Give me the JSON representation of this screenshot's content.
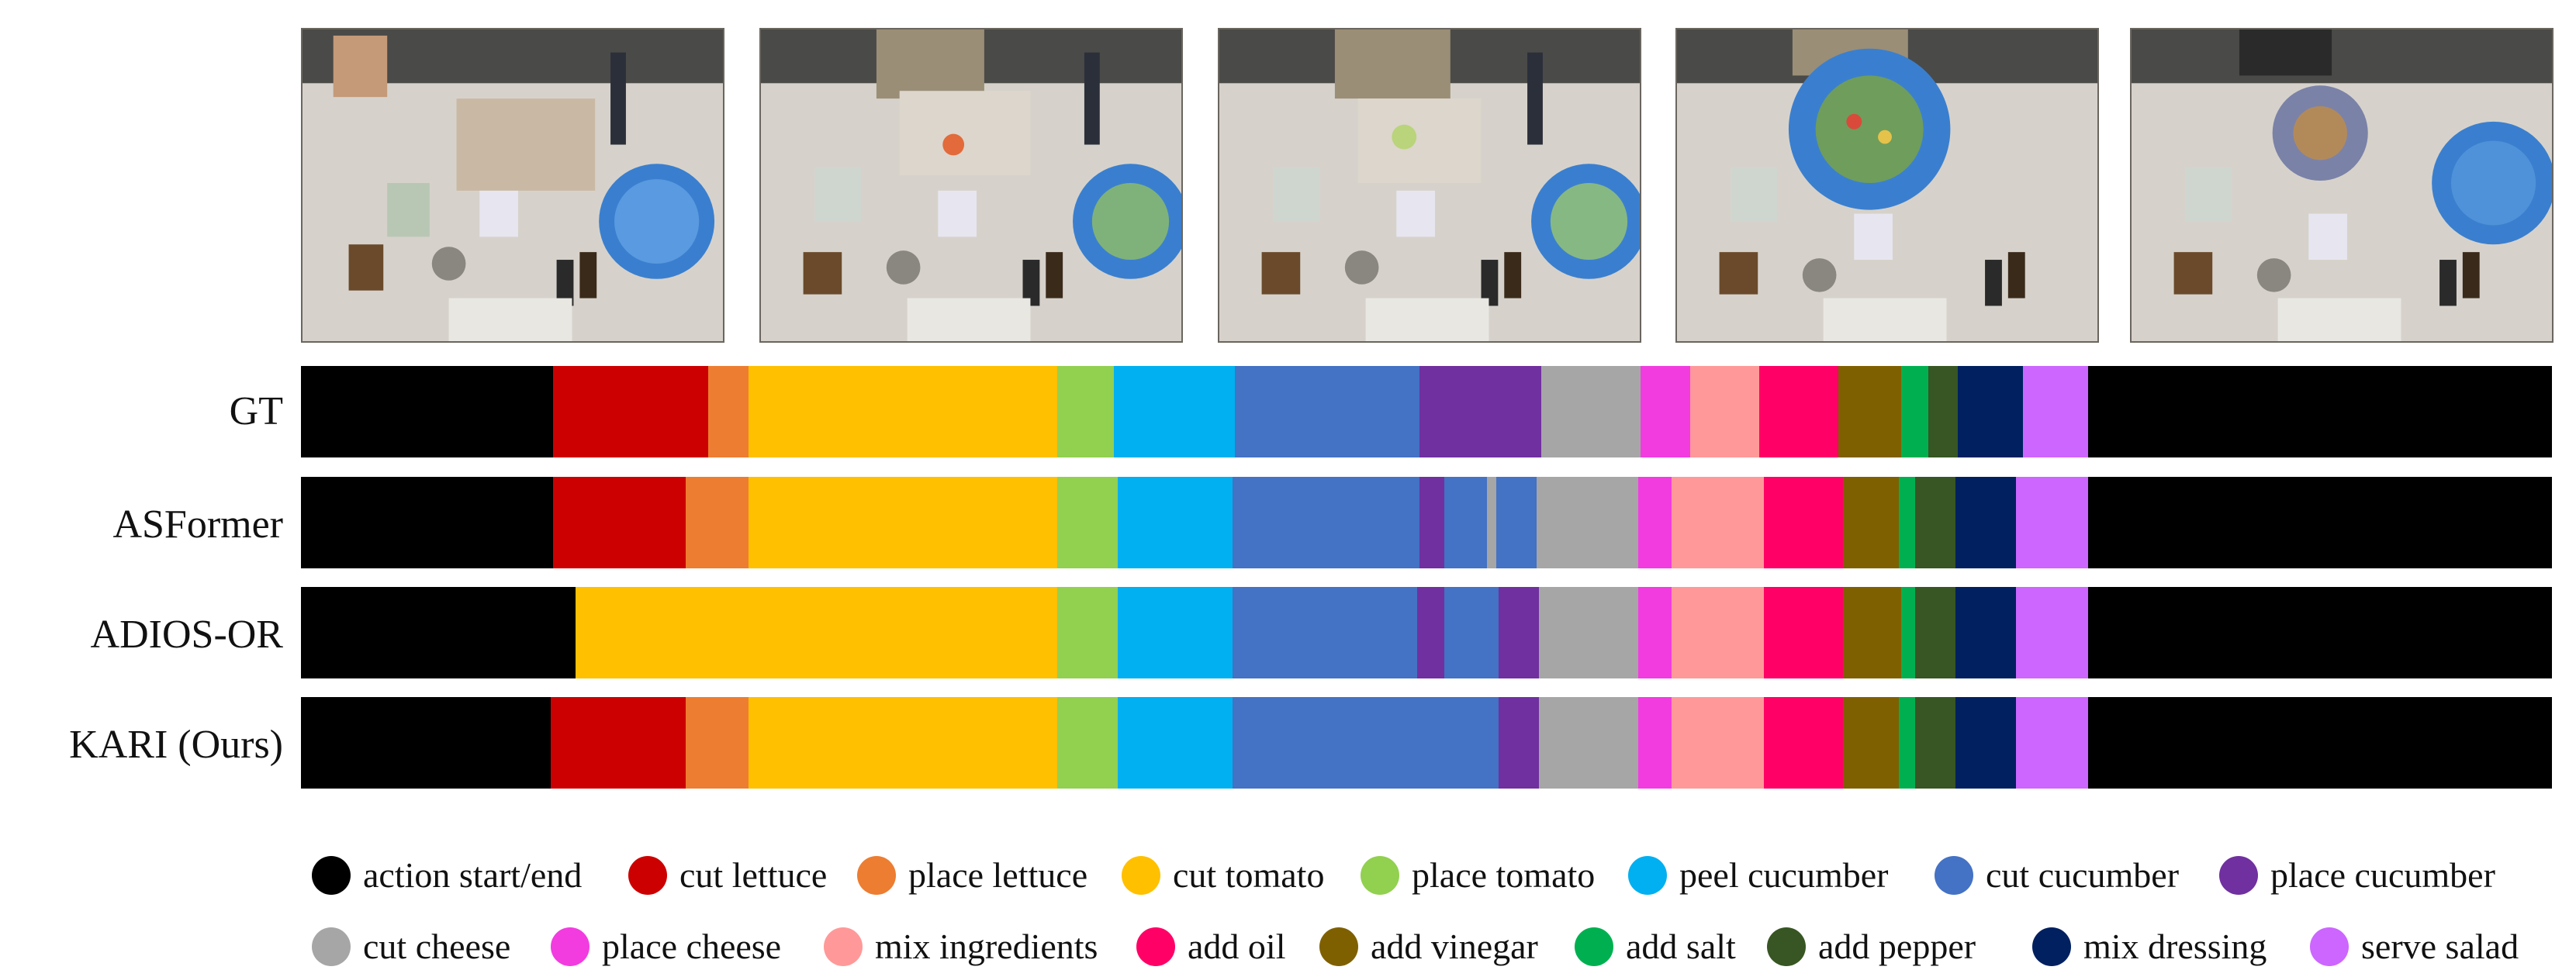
{
  "frames": [
    "frame-1",
    "frame-2",
    "frame-3",
    "frame-4",
    "frame-5"
  ],
  "rows": [
    {
      "label": "GT",
      "segments": [
        {
          "action": "action start/end",
          "start": 0.0,
          "end": 0.112
        },
        {
          "action": "cut lettuce",
          "start": 0.112,
          "end": 0.181
        },
        {
          "action": "place lettuce",
          "start": 0.181,
          "end": 0.199
        },
        {
          "action": "cut tomato",
          "start": 0.199,
          "end": 0.336
        },
        {
          "action": "place tomato",
          "start": 0.336,
          "end": 0.361
        },
        {
          "action": "peel cucumber",
          "start": 0.361,
          "end": 0.415
        },
        {
          "action": "cut cucumber",
          "start": 0.415,
          "end": 0.497
        },
        {
          "action": "place cucumber",
          "start": 0.497,
          "end": 0.551
        },
        {
          "action": "cut cheese",
          "start": 0.551,
          "end": 0.595
        },
        {
          "action": "place cheese",
          "start": 0.595,
          "end": 0.617
        },
        {
          "action": "mix ingredients",
          "start": 0.617,
          "end": 0.648
        },
        {
          "action": "add oil",
          "start": 0.648,
          "end": 0.683
        },
        {
          "action": "add vinegar",
          "start": 0.683,
          "end": 0.711
        },
        {
          "action": "add salt",
          "start": 0.711,
          "end": 0.723
        },
        {
          "action": "add pepper",
          "start": 0.723,
          "end": 0.736
        },
        {
          "action": "mix dressing",
          "start": 0.736,
          "end": 0.765
        },
        {
          "action": "serve salad",
          "start": 0.765,
          "end": 0.794
        },
        {
          "action": "action start/end",
          "start": 0.794,
          "end": 1.0
        }
      ]
    },
    {
      "label": "ASFormer",
      "segments": [
        {
          "action": "action start/end",
          "start": 0.0,
          "end": 0.112
        },
        {
          "action": "cut lettuce",
          "start": 0.112,
          "end": 0.171
        },
        {
          "action": "place lettuce",
          "start": 0.171,
          "end": 0.199
        },
        {
          "action": "cut tomato",
          "start": 0.199,
          "end": 0.336
        },
        {
          "action": "place tomato",
          "start": 0.336,
          "end": 0.363
        },
        {
          "action": "peel cucumber",
          "start": 0.363,
          "end": 0.414
        },
        {
          "action": "cut cucumber",
          "start": 0.414,
          "end": 0.497
        },
        {
          "action": "place cucumber",
          "start": 0.497,
          "end": 0.508
        },
        {
          "action": "cut cucumber",
          "start": 0.508,
          "end": 0.527
        },
        {
          "action": "cut cheese",
          "start": 0.527,
          "end": 0.531
        },
        {
          "action": "cut cucumber",
          "start": 0.531,
          "end": 0.549
        },
        {
          "action": "cut cheese",
          "start": 0.549,
          "end": 0.594
        },
        {
          "action": "place cheese",
          "start": 0.594,
          "end": 0.609
        },
        {
          "action": "mix ingredients",
          "start": 0.609,
          "end": 0.65
        },
        {
          "action": "add oil",
          "start": 0.65,
          "end": 0.685
        },
        {
          "action": "add vinegar",
          "start": 0.685,
          "end": 0.71
        },
        {
          "action": "add salt",
          "start": 0.71,
          "end": 0.717
        },
        {
          "action": "add pepper",
          "start": 0.717,
          "end": 0.735
        },
        {
          "action": "mix dressing",
          "start": 0.735,
          "end": 0.762
        },
        {
          "action": "serve salad",
          "start": 0.762,
          "end": 0.794
        },
        {
          "action": "action start/end",
          "start": 0.794,
          "end": 1.0
        }
      ]
    },
    {
      "label": "ADIOS-OR",
      "segments": [
        {
          "action": "action start/end",
          "start": 0.0,
          "end": 0.122
        },
        {
          "action": "cut tomato",
          "start": 0.122,
          "end": 0.336
        },
        {
          "action": "place tomato",
          "start": 0.336,
          "end": 0.363
        },
        {
          "action": "peel cucumber",
          "start": 0.363,
          "end": 0.414
        },
        {
          "action": "cut cucumber",
          "start": 0.414,
          "end": 0.496
        },
        {
          "action": "place cucumber",
          "start": 0.496,
          "end": 0.508
        },
        {
          "action": "cut cucumber",
          "start": 0.508,
          "end": 0.532
        },
        {
          "action": "place cucumber",
          "start": 0.532,
          "end": 0.55
        },
        {
          "action": "cut cheese",
          "start": 0.55,
          "end": 0.594
        },
        {
          "action": "place cheese",
          "start": 0.594,
          "end": 0.609
        },
        {
          "action": "mix ingredients",
          "start": 0.609,
          "end": 0.65
        },
        {
          "action": "add oil",
          "start": 0.65,
          "end": 0.685
        },
        {
          "action": "add vinegar",
          "start": 0.685,
          "end": 0.711
        },
        {
          "action": "add salt",
          "start": 0.711,
          "end": 0.717
        },
        {
          "action": "add pepper",
          "start": 0.717,
          "end": 0.735
        },
        {
          "action": "mix dressing",
          "start": 0.735,
          "end": 0.762
        },
        {
          "action": "serve salad",
          "start": 0.762,
          "end": 0.794
        },
        {
          "action": "action start/end",
          "start": 0.794,
          "end": 1.0
        }
      ]
    },
    {
      "label": "KARI (Ours)",
      "segments": [
        {
          "action": "action start/end",
          "start": 0.0,
          "end": 0.111
        },
        {
          "action": "cut lettuce",
          "start": 0.111,
          "end": 0.171
        },
        {
          "action": "place lettuce",
          "start": 0.171,
          "end": 0.199
        },
        {
          "action": "cut tomato",
          "start": 0.199,
          "end": 0.336
        },
        {
          "action": "place tomato",
          "start": 0.336,
          "end": 0.363
        },
        {
          "action": "peel cucumber",
          "start": 0.363,
          "end": 0.414
        },
        {
          "action": "cut cucumber",
          "start": 0.414,
          "end": 0.532
        },
        {
          "action": "place cucumber",
          "start": 0.532,
          "end": 0.55
        },
        {
          "action": "cut cheese",
          "start": 0.55,
          "end": 0.594
        },
        {
          "action": "place cheese",
          "start": 0.594,
          "end": 0.609
        },
        {
          "action": "mix ingredients",
          "start": 0.609,
          "end": 0.65
        },
        {
          "action": "add oil",
          "start": 0.65,
          "end": 0.685
        },
        {
          "action": "add vinegar",
          "start": 0.685,
          "end": 0.71
        },
        {
          "action": "add salt",
          "start": 0.71,
          "end": 0.717
        },
        {
          "action": "add pepper",
          "start": 0.717,
          "end": 0.735
        },
        {
          "action": "mix dressing",
          "start": 0.735,
          "end": 0.762
        },
        {
          "action": "serve salad",
          "start": 0.762,
          "end": 0.794
        },
        {
          "action": "action start/end",
          "start": 0.794,
          "end": 1.0
        }
      ]
    }
  ],
  "legend": [
    {
      "label": "action start/end",
      "color": "#000000"
    },
    {
      "label": "cut lettuce",
      "color": "#cc0000"
    },
    {
      "label": "place lettuce",
      "color": "#ed7d31"
    },
    {
      "label": "cut tomato",
      "color": "#ffc000"
    },
    {
      "label": "place tomato",
      "color": "#92d050"
    },
    {
      "label": "peel cucumber",
      "color": "#00b0f0"
    },
    {
      "label": "cut cucumber",
      "color": "#4472c4"
    },
    {
      "label": "place cucumber",
      "color": "#7030a0"
    },
    {
      "label": "cut cheese",
      "color": "#a6a6a6"
    },
    {
      "label": "place cheese",
      "color": "#f23ce0"
    },
    {
      "label": "mix ingredients",
      "color": "#ff9999"
    },
    {
      "label": "add oil",
      "color": "#ff0066"
    },
    {
      "label": "add vinegar",
      "color": "#7f6000"
    },
    {
      "label": "add salt",
      "color": "#00b050"
    },
    {
      "label": "add pepper",
      "color": "#375623"
    },
    {
      "label": "mix dressing",
      "color": "#002060"
    },
    {
      "label": "serve salad",
      "color": "#cc66ff"
    }
  ]
}
